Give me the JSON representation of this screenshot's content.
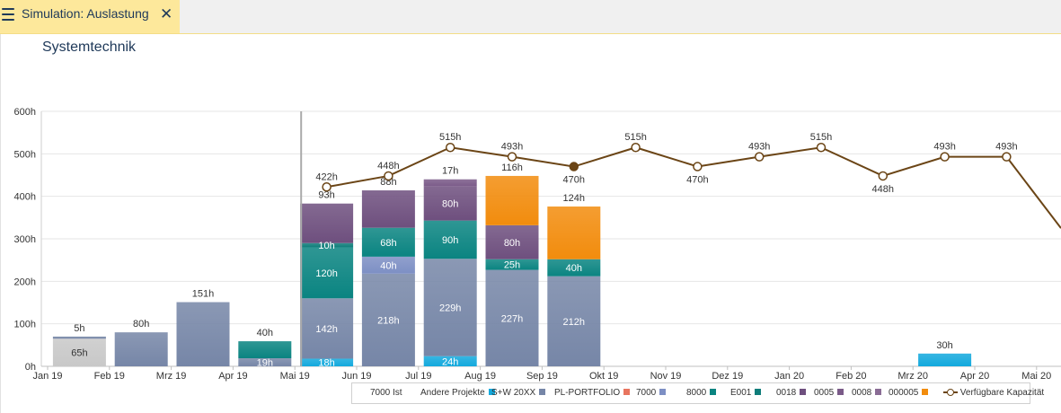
{
  "tab": {
    "title": "Simulation: Auslastung",
    "close": "✕"
  },
  "panel": {
    "title": "Systemtechnik"
  },
  "chart_data": {
    "type": "bar",
    "stacked": true,
    "y_unit": "h",
    "ylim": [
      0,
      600
    ],
    "yticks": [
      "0h",
      "100h",
      "200h",
      "300h",
      "400h",
      "500h",
      "600h"
    ],
    "grid": true,
    "legend_position": "bottom",
    "categories": [
      "Jan 19",
      "Feb 19",
      "Mrz 19",
      "Apr 19",
      "Mai 19",
      "Jun 19",
      "Jul 19",
      "Aug 19",
      "Sep 19",
      "Okt 19",
      "Nov 19",
      "Dez 19",
      "Jan 20",
      "Feb 20",
      "Mrz 20",
      "Apr 20",
      "Mai 20"
    ],
    "series": [
      {
        "name": "7000 Ist",
        "color": "#c8c8c8",
        "values": [
          65,
          0,
          0,
          0,
          0,
          0,
          0,
          0,
          0,
          0,
          0,
          0,
          0,
          0,
          0,
          0,
          0
        ]
      },
      {
        "name": "Andere Projekte",
        "color": "#13a9dd",
        "values": [
          0,
          0,
          0,
          0,
          18,
          0,
          24,
          0,
          0,
          0,
          0,
          0,
          0,
          0,
          30,
          0,
          0
        ]
      },
      {
        "name": "S+W 20XX",
        "color": "#7686a7",
        "values": [
          5,
          80,
          151,
          19,
          142,
          218,
          229,
          227,
          212,
          0,
          0,
          0,
          0,
          0,
          0,
          0,
          0
        ]
      },
      {
        "name": "PL-PORTFOLIO",
        "color": "#e8755f",
        "values": [
          0,
          0,
          0,
          0,
          0,
          0,
          0,
          0,
          0,
          0,
          0,
          0,
          0,
          0,
          0,
          0,
          0
        ]
      },
      {
        "name": "7000",
        "color": "#7d8fc4",
        "values": [
          0,
          0,
          0,
          0,
          0,
          40,
          0,
          0,
          0,
          0,
          0,
          0,
          0,
          0,
          0,
          0,
          0
        ]
      },
      {
        "name": "8000",
        "color": "#0a8481",
        "values": [
          0,
          0,
          0,
          40,
          120,
          68,
          90,
          25,
          40,
          0,
          0,
          0,
          0,
          0,
          0,
          0,
          0
        ]
      },
      {
        "name": "E001",
        "color": "#0f7d7a",
        "values": [
          0,
          0,
          0,
          0,
          10,
          0,
          0,
          0,
          0,
          0,
          0,
          0,
          0,
          0,
          0,
          0,
          0
        ]
      },
      {
        "name": "0018",
        "color": "#6e4f7e",
        "values": [
          0,
          0,
          0,
          0,
          93,
          88,
          80,
          80,
          0,
          0,
          0,
          0,
          0,
          0,
          0,
          0,
          0
        ]
      },
      {
        "name": "0005",
        "color": "#7a5a88",
        "values": [
          0,
          0,
          0,
          0,
          0,
          0,
          17,
          0,
          0,
          0,
          0,
          0,
          0,
          0,
          0,
          0,
          0
        ]
      },
      {
        "name": "0008",
        "color": "#8a6c95",
        "values": [
          0,
          0,
          0,
          0,
          0,
          0,
          0,
          0,
          0,
          0,
          0,
          0,
          0,
          0,
          0,
          0,
          0
        ]
      },
      {
        "name": "000005",
        "color": "#f28c0d",
        "values": [
          0,
          0,
          0,
          0,
          0,
          0,
          0,
          116,
          124,
          0,
          0,
          0,
          0,
          0,
          0,
          0,
          0
        ]
      }
    ],
    "segment_labels": [
      {
        "cat": 0,
        "series": "7000 Ist",
        "text": "65h"
      },
      {
        "cat": 4,
        "series": "Andere Projekte",
        "text": "18h"
      },
      {
        "cat": 4,
        "series": "S+W 20XX",
        "text": "142h"
      },
      {
        "cat": 4,
        "series": "8000",
        "text": "120h"
      },
      {
        "cat": 4,
        "series": "E001",
        "text": "10h"
      },
      {
        "cat": 5,
        "series": "S+W 20XX",
        "text": "218h"
      },
      {
        "cat": 5,
        "series": "7000",
        "text": "40h"
      },
      {
        "cat": 5,
        "series": "8000",
        "text": "68h"
      },
      {
        "cat": 6,
        "series": "Andere Projekte",
        "text": "24h"
      },
      {
        "cat": 6,
        "series": "S+W 20XX",
        "text": "229h"
      },
      {
        "cat": 6,
        "series": "8000",
        "text": "90h"
      },
      {
        "cat": 6,
        "series": "0018",
        "text": "80h"
      },
      {
        "cat": 7,
        "series": "S+W 20XX",
        "text": "227h"
      },
      {
        "cat": 7,
        "series": "8000",
        "text": "25h"
      },
      {
        "cat": 7,
        "series": "0018",
        "text": "80h"
      },
      {
        "cat": 8,
        "series": "S+W 20XX",
        "text": "212h"
      },
      {
        "cat": 8,
        "series": "8000",
        "text": "40h"
      },
      {
        "cat": 3,
        "series": "S+W 20XX",
        "text": "19h"
      }
    ],
    "top_labels": [
      {
        "cat": 0,
        "text": "5h"
      },
      {
        "cat": 1,
        "text": "80h"
      },
      {
        "cat": 2,
        "text": "151h"
      },
      {
        "cat": 3,
        "text": "40h"
      },
      {
        "cat": 4,
        "text": "93h"
      },
      {
        "cat": 5,
        "text": "88h"
      },
      {
        "cat": 6,
        "text": "17h"
      },
      {
        "cat": 7,
        "text": "116h"
      },
      {
        "cat": 8,
        "text": "124h"
      },
      {
        "cat": 14,
        "text": "30h"
      }
    ],
    "capacity": {
      "name": "Verfügbare Kapazität",
      "color": "#6b4516",
      "values": [
        null,
        null,
        null,
        null,
        422,
        448,
        515,
        493,
        470,
        515,
        470,
        493,
        515,
        448,
        493,
        493,
        325
      ],
      "labels": [
        "",
        "",
        "",
        "",
        "422h",
        "448h",
        "515h",
        "493h",
        "470h",
        "515h",
        "470h",
        "493h",
        "515h",
        "448h",
        "493h",
        "493h",
        ""
      ],
      "highlighted_index": 8
    },
    "current_period_marker": "Mai 19"
  },
  "legend": {
    "items": [
      {
        "label": "7000 Ist",
        "color": "#c8c8c8",
        "type": "none"
      },
      {
        "label": "Andere Projekte",
        "color": "#13a9dd",
        "type": "box"
      },
      {
        "label": "S+W 20XX",
        "color": "#7686a7",
        "type": "box"
      },
      {
        "label": "PL-PORTFOLIO",
        "color": "#e8755f",
        "type": "box"
      },
      {
        "label": "7000",
        "color": "#7d8fc4",
        "type": "box"
      },
      {
        "label": "8000",
        "color": "#0a8481",
        "type": "box"
      },
      {
        "label": "E001",
        "color": "#0f7d7a",
        "type": "box"
      },
      {
        "label": "0018",
        "color": "#6e4f7e",
        "type": "box"
      },
      {
        "label": "0005",
        "color": "#7a5a88",
        "type": "box"
      },
      {
        "label": "0008",
        "color": "#8a6c95",
        "type": "box"
      },
      {
        "label": "000005",
        "color": "#f28c0d",
        "type": "box"
      },
      {
        "label": "Verfügbare Kapazität",
        "color": "#6b4516",
        "type": "line"
      }
    ]
  }
}
